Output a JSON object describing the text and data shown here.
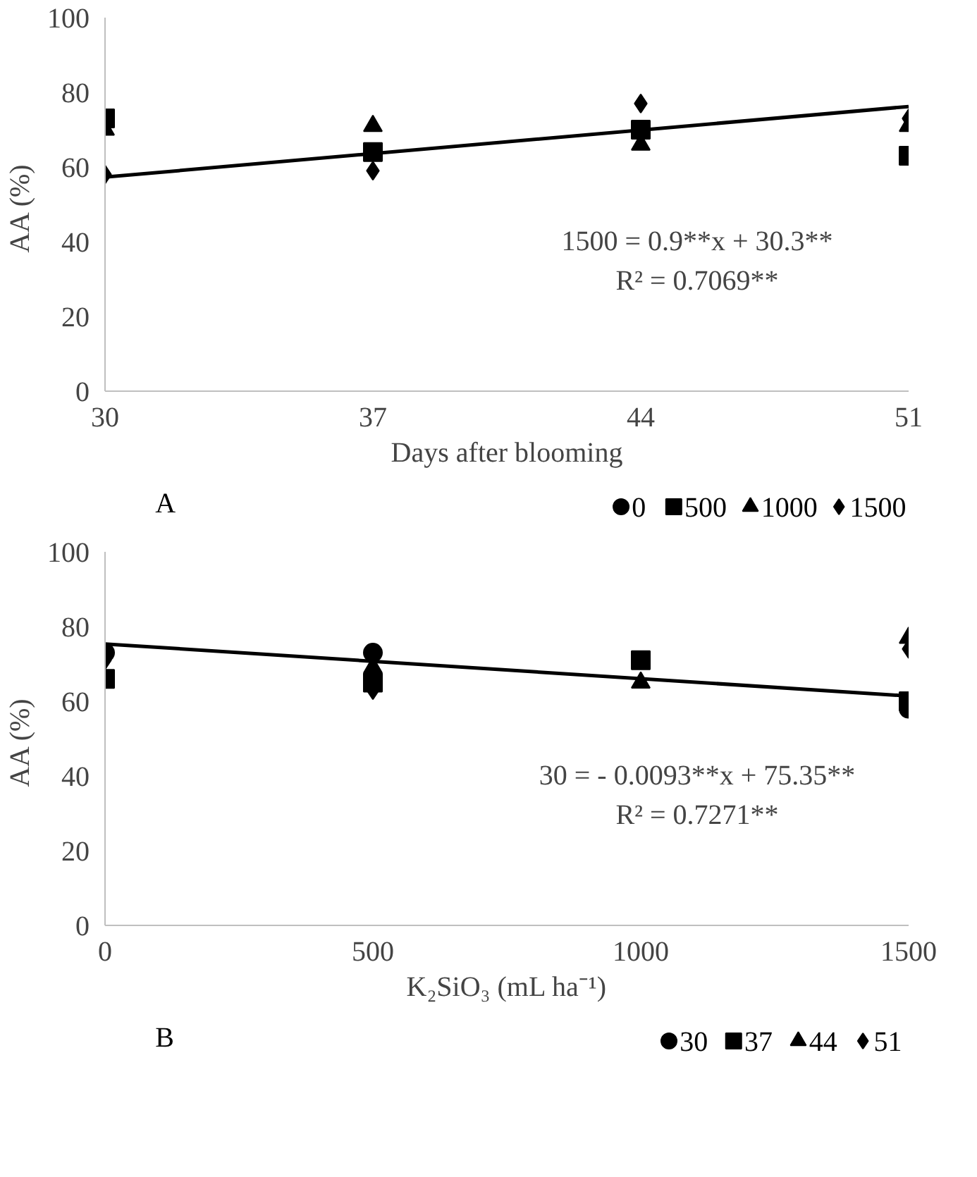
{
  "chart_data": [
    {
      "type": "scatter",
      "xlabel": "Days after blooming",
      "ylabel": "AA  (%)",
      "x": [
        30,
        37,
        44,
        51
      ],
      "xlim": [
        30,
        51
      ],
      "xticks": [
        30,
        37,
        44,
        51
      ],
      "ylim": [
        0,
        100
      ],
      "yticks": [
        0,
        20,
        40,
        60,
        80,
        100
      ],
      "grid": false,
      "legend": "bottom",
      "annotations": [
        "A",
        "1500 = 0.9**x + 30.3**",
        "R² = 0.7069**"
      ],
      "series": [
        {
          "name": "0",
          "color": "#000000",
          "marker": "circle",
          "values": [
            null,
            null,
            null,
            null
          ]
        },
        {
          "name": "500",
          "color": "#000000",
          "marker": "square",
          "values": [
            73,
            64,
            70,
            63
          ]
        },
        {
          "name": "1000",
          "color": "#000000",
          "marker": "triangle",
          "values": [
            70,
            71,
            66,
            71
          ]
        },
        {
          "name": "1500",
          "color": "#000000",
          "marker": "diamond",
          "values": [
            58,
            59,
            77,
            73
          ]
        },
        {
          "type": "line",
          "color": "#000000",
          "x": [
            30,
            51
          ],
          "values": [
            57.3,
            76.2
          ]
        }
      ]
    },
    {
      "type": "scatter",
      "xlabel": "K₂SiO₃ (mL ha⁻¹)",
      "ylabel": "AA  (%)",
      "x": [
        0,
        500,
        1000,
        1500
      ],
      "xlim": [
        0,
        1500
      ],
      "xticks": [
        0,
        500,
        1000,
        1500
      ],
      "ylim": [
        0,
        100
      ],
      "yticks": [
        0,
        20,
        40,
        60,
        80,
        100
      ],
      "grid": false,
      "legend": "bottom",
      "annotations": [
        "B",
        "30 = - 0.0093**x + 75.35**",
        "R² = 0.7271**"
      ],
      "series": [
        {
          "name": "30",
          "color": "#000000",
          "marker": "circle",
          "values": [
            73,
            73,
            null,
            58
          ]
        },
        {
          "name": "37",
          "color": "#000000",
          "marker": "square",
          "values": [
            66,
            65,
            71,
            60
          ]
        },
        {
          "name": "44",
          "color": "#000000",
          "marker": "triangle",
          "values": [
            null,
            69,
            65,
            77
          ]
        },
        {
          "name": "51",
          "color": "#000000",
          "marker": "diamond",
          "values": [
            71,
            63,
            null,
            74
          ]
        },
        {
          "type": "line",
          "color": "#000000",
          "x": [
            0,
            1500
          ],
          "values": [
            75.35,
            61.4
          ]
        }
      ]
    }
  ]
}
